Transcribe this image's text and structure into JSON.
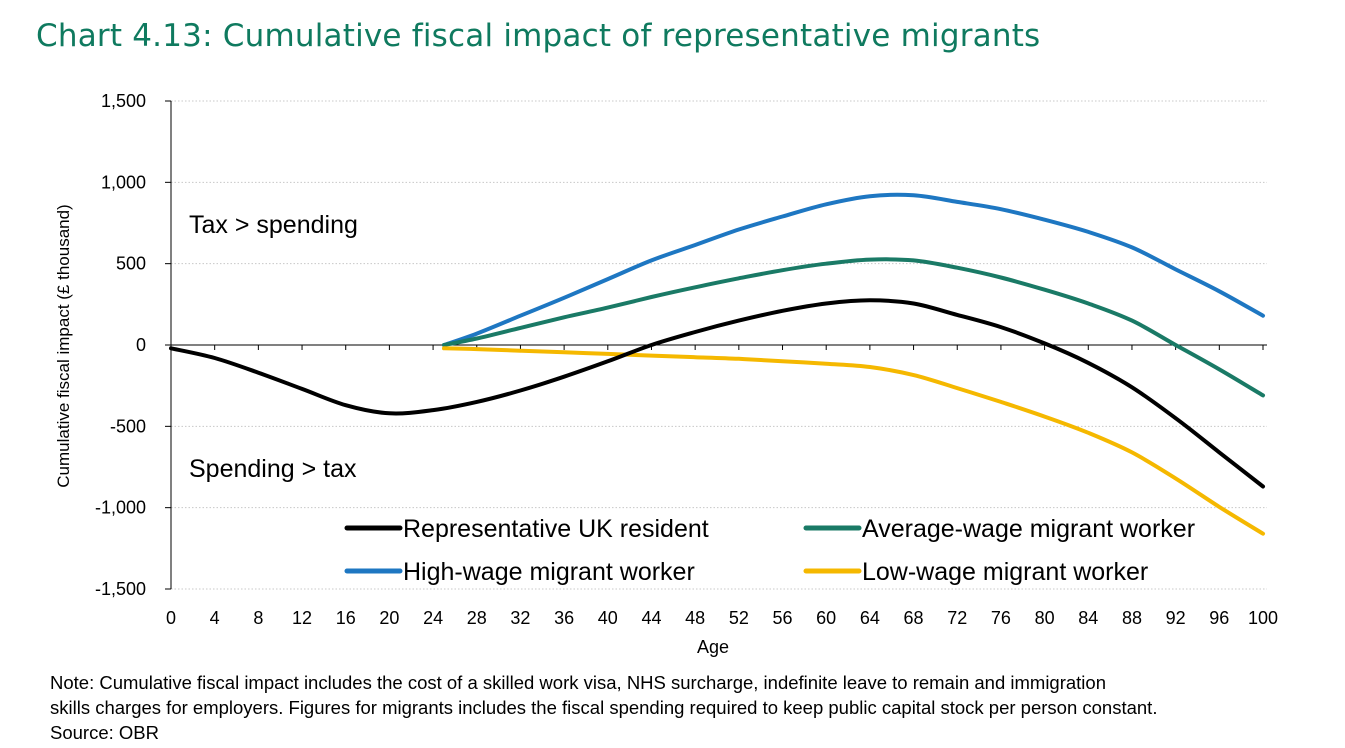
{
  "title": "Chart 4.13: Cumulative fiscal impact of representative migrants",
  "note_lines": [
    "Note: Cumulative fiscal impact includes the cost of a skilled work visa, NHS surcharge, indefinite leave to remain and immigration",
    "skills charges for employers. Figures for migrants includes the fiscal spending required to keep public capital stock per person constant.",
    "Source: OBR"
  ],
  "chart_data": {
    "type": "line",
    "title": "Chart 4.13: Cumulative fiscal impact of representative migrants",
    "xlabel": "Age",
    "ylabel": "Cumulative fiscal impact (£ thousand)",
    "xlim": [
      0,
      100
    ],
    "ylim": [
      -1500,
      1500
    ],
    "x_ticks": [
      0,
      4,
      8,
      12,
      16,
      20,
      24,
      28,
      32,
      36,
      40,
      44,
      48,
      52,
      56,
      60,
      64,
      68,
      72,
      76,
      80,
      84,
      88,
      92,
      96,
      100
    ],
    "y_ticks": [
      1500,
      1000,
      500,
      0,
      -500,
      -1000,
      -1500
    ],
    "y_tick_labels": [
      "1,500",
      "1,000",
      "500",
      "0",
      "-500",
      "-1,000",
      "-1,500"
    ],
    "grid": "horizontal",
    "legend_position": "bottom-inside",
    "annotations": [
      "Tax > spending",
      "Spending > tax"
    ],
    "series": [
      {
        "name": "Representative UK resident",
        "color": "#000000",
        "x": [
          0,
          4,
          8,
          12,
          16,
          20,
          24,
          28,
          32,
          36,
          40,
          44,
          48,
          52,
          56,
          60,
          64,
          68,
          72,
          76,
          80,
          84,
          88,
          92,
          96,
          100
        ],
        "values": [
          -20,
          -80,
          -170,
          -270,
          -370,
          -420,
          -400,
          -350,
          -280,
          -195,
          -100,
          0,
          80,
          150,
          210,
          255,
          275,
          255,
          185,
          110,
          10,
          -110,
          -260,
          -450,
          -660,
          -870
        ]
      },
      {
        "name": "Average-wage migrant worker",
        "color": "#1a7a66",
        "x": [
          25,
          28,
          32,
          36,
          40,
          44,
          48,
          52,
          56,
          60,
          64,
          68,
          72,
          76,
          80,
          84,
          88,
          92,
          96,
          100
        ],
        "values": [
          0,
          40,
          105,
          170,
          230,
          295,
          355,
          410,
          460,
          500,
          525,
          520,
          475,
          415,
          340,
          255,
          150,
          0,
          -150,
          -310
        ]
      },
      {
        "name": "High-wage migrant worker",
        "color": "#1e77c2",
        "x": [
          25,
          28,
          32,
          36,
          40,
          44,
          48,
          52,
          56,
          60,
          64,
          68,
          72,
          76,
          80,
          84,
          88,
          92,
          96,
          100
        ],
        "values": [
          0,
          70,
          180,
          290,
          405,
          520,
          615,
          710,
          790,
          865,
          915,
          920,
          880,
          835,
          770,
          695,
          600,
          465,
          330,
          180
        ]
      },
      {
        "name": "Low-wage migrant worker",
        "color": "#f5b800",
        "x": [
          25,
          28,
          32,
          36,
          40,
          44,
          48,
          52,
          56,
          60,
          64,
          68,
          72,
          76,
          80,
          84,
          88,
          92,
          96,
          100
        ],
        "values": [
          -20,
          -25,
          -35,
          -45,
          -55,
          -65,
          -75,
          -85,
          -100,
          -115,
          -135,
          -185,
          -265,
          -350,
          -440,
          -540,
          -660,
          -820,
          -995,
          -1160
        ]
      }
    ]
  }
}
